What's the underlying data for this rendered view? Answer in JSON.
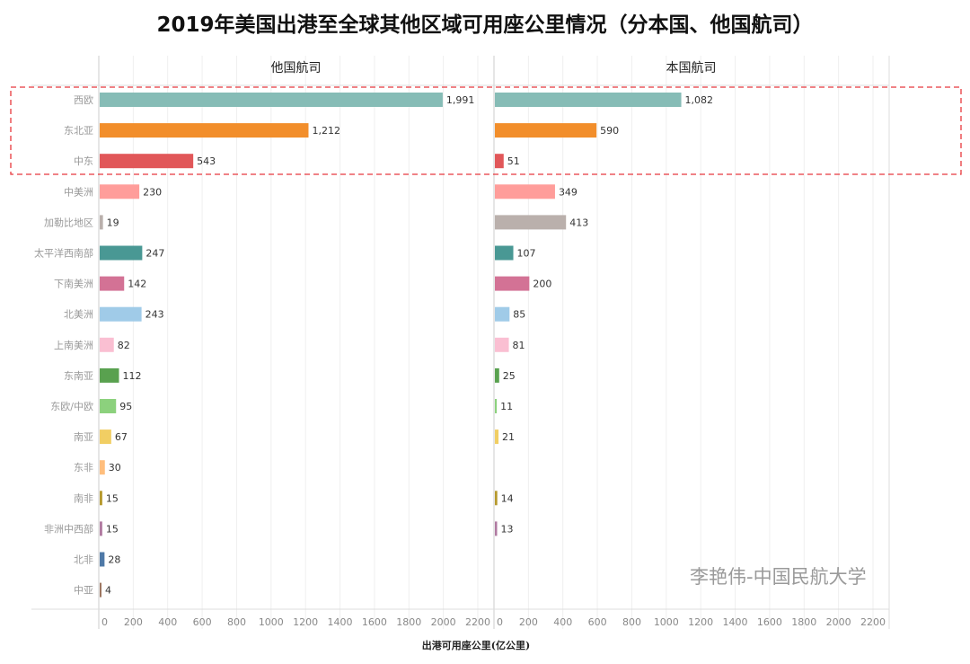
{
  "chart_data": {
    "type": "bar",
    "title": "2019年美国出港至全球其他区域可用座公里情况（分本国、他国航司）",
    "xlabel": "出港可用座公里(亿公里)",
    "xlim": [
      0,
      2200
    ],
    "ticks": [
      0,
      200,
      400,
      600,
      800,
      1000,
      1200,
      1400,
      1600,
      1800,
      2000,
      2200
    ],
    "grid": true,
    "categories": [
      "西欧",
      "东北亚",
      "中东",
      "中美洲",
      "加勒比地区",
      "太平洋西南部",
      "下南美洲",
      "北美洲",
      "上南美洲",
      "东南亚",
      "东欧/中欧",
      "南亚",
      "东非",
      "南非",
      "非洲中西部",
      "北非",
      "中亚"
    ],
    "colors": [
      "#86bcb6",
      "#f28e2b",
      "#e15759",
      "#ff9d9a",
      "#bab0ac",
      "#499894",
      "#d37295",
      "#a0cbe8",
      "#fabfd2",
      "#59a14f",
      "#8cd17d",
      "#f1ce63",
      "#ffbe7d",
      "#b6992d",
      "#b07aa1",
      "#4e79a7",
      "#9d7660"
    ],
    "series": [
      {
        "name": "他国航司",
        "values": [
          1991,
          1212,
          543,
          230,
          19,
          247,
          142,
          243,
          82,
          112,
          95,
          67,
          30,
          15,
          15,
          28,
          4
        ]
      },
      {
        "name": "本国航司",
        "values": [
          1082,
          590,
          51,
          349,
          413,
          107,
          200,
          85,
          81,
          25,
          11,
          21,
          null,
          14,
          13,
          null,
          null
        ]
      }
    ],
    "highlight_rows": [
      "西欧",
      "东北亚",
      "中东"
    ]
  },
  "watermark": "李艳伟-中国民航大学"
}
